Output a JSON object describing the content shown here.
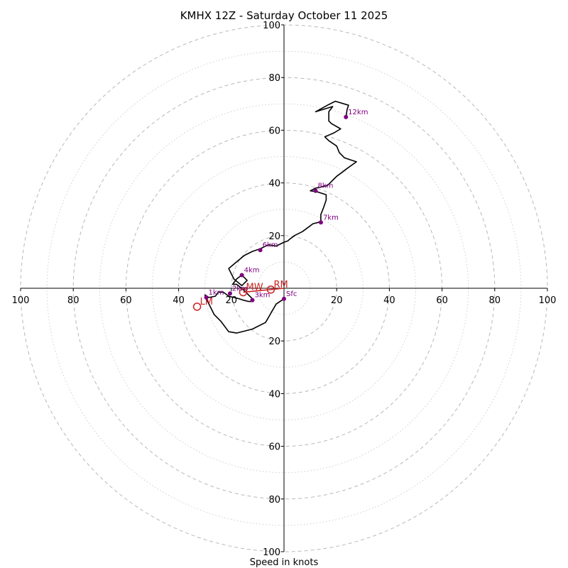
{
  "chart_data": {
    "type": "hodograph",
    "title": "KMHX 12Z - Saturday October 11 2025",
    "xlabel": "Speed in knots",
    "speed_range": [
      0,
      100
    ],
    "ring_major_step": 20,
    "ring_minor_step": 10,
    "tick_labels": [
      "100",
      "80",
      "60",
      "40",
      "20",
      "20",
      "40",
      "60",
      "80",
      "100"
    ],
    "y_tick_labels": [
      "100",
      "80",
      "60",
      "40",
      "20",
      "20",
      "40",
      "60",
      "80",
      "100"
    ],
    "hodograph_trace": [
      [
        0,
        -4
      ],
      [
        -3,
        -6
      ],
      [
        -7,
        -13
      ],
      [
        -12,
        -15.5
      ],
      [
        -18,
        -17
      ],
      [
        -21,
        -16.5
      ],
      [
        -24,
        -12.5
      ],
      [
        -26.5,
        -10
      ],
      [
        -29.5,
        -4
      ],
      [
        -30,
        -2.5
      ],
      [
        -28.5,
        -3.5
      ],
      [
        -26,
        -3
      ],
      [
        -25,
        -1.5
      ],
      [
        -23,
        -1.5
      ],
      [
        -21,
        -3
      ],
      [
        -19,
        -3.5
      ],
      [
        -17,
        -4
      ],
      [
        -15.5,
        -4.5
      ],
      [
        -13.5,
        -5
      ],
      [
        -12,
        -5
      ],
      [
        -11.5,
        -4.5
      ],
      [
        -14,
        -2
      ],
      [
        -15.5,
        -0.5
      ],
      [
        -18,
        1.5
      ],
      [
        -19.5,
        1.5
      ],
      [
        -18,
        3.5
      ],
      [
        -16,
        5
      ],
      [
        -14,
        3
      ],
      [
        -16,
        1
      ],
      [
        -19,
        3.5
      ],
      [
        -21,
        7.5
      ],
      [
        -18,
        10
      ],
      [
        -15,
        12.5
      ],
      [
        -12,
        14
      ],
      [
        -9,
        15
      ],
      [
        -6,
        16.5
      ],
      [
        -3,
        16
      ],
      [
        0,
        17.5
      ],
      [
        1.5,
        18
      ],
      [
        2,
        18.5
      ],
      [
        4,
        20
      ],
      [
        7,
        21.5
      ],
      [
        9,
        23
      ],
      [
        11,
        24.5
      ],
      [
        13,
        25
      ],
      [
        14,
        25.5
      ],
      [
        14,
        28
      ],
      [
        15,
        30.5
      ],
      [
        16,
        33.5
      ],
      [
        16,
        35.5
      ],
      [
        13,
        36.5
      ],
      [
        10,
        37
      ],
      [
        12,
        38
      ],
      [
        16.5,
        39
      ],
      [
        19,
        41.5
      ],
      [
        20,
        42.5
      ],
      [
        22,
        44
      ],
      [
        24,
        45.5
      ],
      [
        27.5,
        48
      ],
      [
        23,
        49.5
      ],
      [
        21,
        51.5
      ],
      [
        20,
        54
      ],
      [
        17,
        56
      ],
      [
        15.5,
        57.5
      ],
      [
        19,
        59
      ],
      [
        21.5,
        60.5
      ],
      [
        18,
        62.5
      ],
      [
        17,
        63.5
      ],
      [
        17,
        67
      ],
      [
        18.5,
        69
      ],
      [
        12,
        67
      ],
      [
        16.5,
        69.5
      ],
      [
        19.5,
        71
      ],
      [
        24.5,
        69.5
      ],
      [
        24,
        68
      ],
      [
        23.5,
        65
      ]
    ],
    "height_labels": [
      {
        "label": "Sfc",
        "u": 0,
        "v": -4
      },
      {
        "label": "1km",
        "u": -29.5,
        "v": -3.5
      },
      {
        "label": "2km",
        "u": -20.5,
        "v": -2
      },
      {
        "label": "3km",
        "u": -12,
        "v": -4.5
      },
      {
        "label": "4km",
        "u": -16,
        "v": 5
      },
      {
        "label": "6km",
        "u": -9,
        "v": 14.5
      },
      {
        "label": "7km",
        "u": 14,
        "v": 25
      },
      {
        "label": "8km",
        "u": 12,
        "v": 37
      },
      {
        "label": "12km",
        "u": 23.5,
        "v": 65
      }
    ],
    "storm_motion": [
      {
        "label": "RM",
        "u": -5,
        "v": -0.5
      },
      {
        "label": "MW",
        "u": -15.5,
        "v": -1.5
      },
      {
        "label": "LM",
        "u": -33,
        "v": -7
      }
    ],
    "colors": {
      "trace": "#000000",
      "height_marker": "#800080",
      "storm_motion": "#cc2222",
      "ring_major": "#b8b8b8",
      "ring_minor": "#cfcfcf"
    }
  }
}
